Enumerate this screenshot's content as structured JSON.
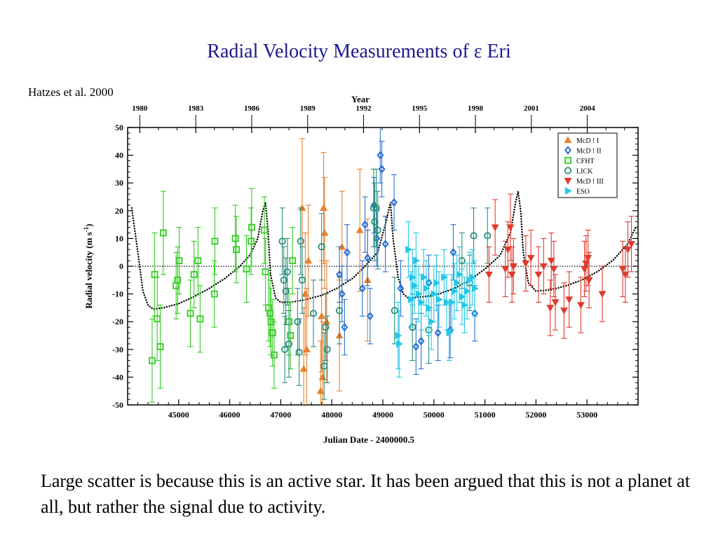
{
  "slide": {
    "title": "Radial Velocity Measurements of ε Eri",
    "citation": "Hatzes et al. 2000",
    "caption": "Large scatter is because this is an active star. It has been argued that this is not a planet at all, but rather the signal due to activity."
  },
  "chart_data": {
    "type": "scatter",
    "title": "",
    "xlabel": "Julian Date - 2400000.5",
    "ylabel": "Radial velocity (m s-1)",
    "top_axis_label": "Year",
    "xlim": [
      44000,
      54000
    ],
    "ylim": [
      -50,
      50
    ],
    "x_ticks": [
      45000,
      46000,
      47000,
      48000,
      49000,
      50000,
      51000,
      52000,
      53000
    ],
    "y_ticks": [
      -50,
      -40,
      -30,
      -20,
      -10,
      0,
      10,
      20,
      30,
      40,
      50
    ],
    "year_ticks": [
      {
        "year": "1980",
        "mjd": 44239
      },
      {
        "year": "1983",
        "mjd": 45335
      },
      {
        "year": "1986",
        "mjd": 46431
      },
      {
        "year": "1989",
        "mjd": 47527
      },
      {
        "year": "1992",
        "mjd": 48622
      },
      {
        "year": "1995",
        "mjd": 49718
      },
      {
        "year": "1998",
        "mjd": 50814
      },
      {
        "year": "2001",
        "mjd": 51910
      },
      {
        "year": "2004",
        "mjd": 53005
      }
    ],
    "zero_line": true,
    "legend_position": "top-right",
    "series": [
      {
        "name": "McD ! I",
        "marker": "triangle-up",
        "color": "#e8802e",
        "points": [
          {
            "x": 47420,
            "y": 21,
            "err": 25
          },
          {
            "x": 47450,
            "y": -37,
            "err": 22
          },
          {
            "x": 47480,
            "y": -10,
            "err": 22
          },
          {
            "x": 47510,
            "y": -30,
            "err": 22
          },
          {
            "x": 47540,
            "y": 2,
            "err": 20
          },
          {
            "x": 47780,
            "y": -45,
            "err": 18
          },
          {
            "x": 47800,
            "y": -18,
            "err": 20
          },
          {
            "x": 47820,
            "y": -40,
            "err": 20
          },
          {
            "x": 47840,
            "y": 21,
            "err": 20
          },
          {
            "x": 47860,
            "y": 12,
            "err": 20
          },
          {
            "x": 47900,
            "y": -20,
            "err": 22
          },
          {
            "x": 48150,
            "y": -25,
            "err": 20
          },
          {
            "x": 48200,
            "y": 7,
            "err": 20
          },
          {
            "x": 48550,
            "y": 13,
            "err": 22
          },
          {
            "x": 48700,
            "y": -5,
            "err": 22
          }
        ]
      },
      {
        "name": "McD ! II",
        "marker": "diamond",
        "color": "#2a6fd6",
        "points": [
          {
            "x": 48150,
            "y": -3,
            "err": 10
          },
          {
            "x": 48200,
            "y": -10,
            "err": 10
          },
          {
            "x": 48250,
            "y": -22,
            "err": 10
          },
          {
            "x": 48300,
            "y": 5,
            "err": 10
          },
          {
            "x": 48600,
            "y": -8,
            "err": 10
          },
          {
            "x": 48650,
            "y": 15,
            "err": 10
          },
          {
            "x": 48700,
            "y": 3,
            "err": 10
          },
          {
            "x": 48750,
            "y": -18,
            "err": 10
          },
          {
            "x": 48830,
            "y": 22,
            "err": 10
          },
          {
            "x": 48880,
            "y": 10,
            "err": 10
          },
          {
            "x": 48950,
            "y": 40,
            "err": 10
          },
          {
            "x": 48980,
            "y": 35,
            "err": 10
          },
          {
            "x": 49050,
            "y": 8,
            "err": 10
          },
          {
            "x": 49220,
            "y": 23,
            "err": 10
          },
          {
            "x": 49350,
            "y": -8,
            "err": 10
          },
          {
            "x": 49650,
            "y": -29,
            "err": 10
          },
          {
            "x": 49750,
            "y": -27,
            "err": 10
          },
          {
            "x": 49900,
            "y": -6,
            "err": 10
          },
          {
            "x": 50080,
            "y": -24,
            "err": 10
          },
          {
            "x": 50320,
            "y": -23,
            "err": 10
          },
          {
            "x": 50380,
            "y": 5,
            "err": 10
          },
          {
            "x": 50800,
            "y": -17,
            "err": 10
          }
        ]
      },
      {
        "name": "CFHT",
        "marker": "square",
        "color": "#33cc22",
        "points": [
          {
            "x": 44480,
            "y": -34,
            "err": 15
          },
          {
            "x": 44530,
            "y": -3,
            "err": 15
          },
          {
            "x": 44580,
            "y": -19,
            "err": 15
          },
          {
            "x": 44640,
            "y": -29,
            "err": 15
          },
          {
            "x": 44700,
            "y": 12,
            "err": 15
          },
          {
            "x": 44950,
            "y": -7,
            "err": 12
          },
          {
            "x": 44980,
            "y": -5,
            "err": 12
          },
          {
            "x": 45010,
            "y": 2,
            "err": 12
          },
          {
            "x": 45230,
            "y": -17,
            "err": 12
          },
          {
            "x": 45300,
            "y": -3,
            "err": 12
          },
          {
            "x": 45380,
            "y": 2,
            "err": 12
          },
          {
            "x": 45420,
            "y": -19,
            "err": 12
          },
          {
            "x": 45700,
            "y": -10,
            "err": 12
          },
          {
            "x": 45710,
            "y": 9,
            "err": 12
          },
          {
            "x": 46110,
            "y": 10,
            "err": 12
          },
          {
            "x": 46130,
            "y": 6,
            "err": 12
          },
          {
            "x": 46330,
            "y": -1,
            "err": 12
          },
          {
            "x": 46420,
            "y": 9,
            "err": 12
          },
          {
            "x": 46430,
            "y": 14,
            "err": 14
          },
          {
            "x": 46680,
            "y": 13,
            "err": 12
          },
          {
            "x": 46700,
            "y": -2,
            "err": 12
          },
          {
            "x": 46760,
            "y": -15,
            "err": 12
          },
          {
            "x": 46790,
            "y": -17,
            "err": 12
          },
          {
            "x": 46810,
            "y": -20,
            "err": 12
          },
          {
            "x": 46840,
            "y": -24,
            "err": 12
          },
          {
            "x": 46870,
            "y": -32,
            "err": 12
          },
          {
            "x": 47160,
            "y": -20,
            "err": 12
          },
          {
            "x": 47190,
            "y": -25,
            "err": 12
          },
          {
            "x": 47230,
            "y": 2,
            "err": 12
          }
        ]
      },
      {
        "name": "LICK",
        "marker": "circle",
        "color": "#2a8f7a",
        "points": [
          {
            "x": 47030,
            "y": 9,
            "err": 12
          },
          {
            "x": 47060,
            "y": -5,
            "err": 12
          },
          {
            "x": 47080,
            "y": -30,
            "err": 12
          },
          {
            "x": 47100,
            "y": -9,
            "err": 12
          },
          {
            "x": 47130,
            "y": -2,
            "err": 12
          },
          {
            "x": 47160,
            "y": -28,
            "err": 12
          },
          {
            "x": 47330,
            "y": -20,
            "err": 12
          },
          {
            "x": 47360,
            "y": -31,
            "err": 12
          },
          {
            "x": 47390,
            "y": 9,
            "err": 12
          },
          {
            "x": 47420,
            "y": -5,
            "err": 12
          },
          {
            "x": 47640,
            "y": -17,
            "err": 12
          },
          {
            "x": 47800,
            "y": 7,
            "err": 12
          },
          {
            "x": 47850,
            "y": -36,
            "err": 12
          },
          {
            "x": 47880,
            "y": -22,
            "err": 12
          },
          {
            "x": 47910,
            "y": -30,
            "err": 12
          },
          {
            "x": 48150,
            "y": -16,
            "err": 12
          },
          {
            "x": 48820,
            "y": 21,
            "err": 14
          },
          {
            "x": 48840,
            "y": 16,
            "err": 14
          },
          {
            "x": 48870,
            "y": 21,
            "err": 14
          },
          {
            "x": 48900,
            "y": 13,
            "err": 14
          },
          {
            "x": 49230,
            "y": -16,
            "err": 12
          },
          {
            "x": 49580,
            "y": -22,
            "err": 12
          },
          {
            "x": 49900,
            "y": -23,
            "err": 12
          },
          {
            "x": 50550,
            "y": 2,
            "err": 10
          },
          {
            "x": 50700,
            "y": -6,
            "err": 10
          },
          {
            "x": 50780,
            "y": 11,
            "err": 10
          },
          {
            "x": 51050,
            "y": 11,
            "err": 10
          }
        ]
      },
      {
        "name": "McD ! III",
        "marker": "triangle-down",
        "color": "#e03a2e",
        "points": [
          {
            "x": 51080,
            "y": -3,
            "err": 10
          },
          {
            "x": 51200,
            "y": 14,
            "err": 10
          },
          {
            "x": 51400,
            "y": -1,
            "err": 10
          },
          {
            "x": 51450,
            "y": 6,
            "err": 10
          },
          {
            "x": 51500,
            "y": 14,
            "err": 12
          },
          {
            "x": 51530,
            "y": -3,
            "err": 10
          },
          {
            "x": 51560,
            "y": 0,
            "err": 10
          },
          {
            "x": 51800,
            "y": 1,
            "err": 10
          },
          {
            "x": 51900,
            "y": 3,
            "err": 10
          },
          {
            "x": 52050,
            "y": -3,
            "err": 10
          },
          {
            "x": 52150,
            "y": 0,
            "err": 10
          },
          {
            "x": 52280,
            "y": -15,
            "err": 10
          },
          {
            "x": 52300,
            "y": 2,
            "err": 10
          },
          {
            "x": 52350,
            "y": -1,
            "err": 10
          },
          {
            "x": 52380,
            "y": -13,
            "err": 10
          },
          {
            "x": 52550,
            "y": -16,
            "err": 10
          },
          {
            "x": 52650,
            "y": -12,
            "err": 10
          },
          {
            "x": 52880,
            "y": -14,
            "err": 10
          },
          {
            "x": 52950,
            "y": -1,
            "err": 10
          },
          {
            "x": 52980,
            "y": 1,
            "err": 10
          },
          {
            "x": 53020,
            "y": 3,
            "err": 10
          },
          {
            "x": 53040,
            "y": -5,
            "err": 10
          },
          {
            "x": 53300,
            "y": -10,
            "err": 10
          },
          {
            "x": 53700,
            "y": -1,
            "err": 10
          },
          {
            "x": 53750,
            "y": -3,
            "err": 10
          },
          {
            "x": 53800,
            "y": 6,
            "err": 10
          },
          {
            "x": 53870,
            "y": 8,
            "err": 10
          }
        ]
      },
      {
        "name": "ESO",
        "marker": "triangle-right",
        "color": "#22c8e8",
        "points": [
          {
            "x": 49300,
            "y": -25,
            "err": 12
          },
          {
            "x": 49320,
            "y": -28,
            "err": 12
          },
          {
            "x": 49500,
            "y": 6,
            "err": 10
          },
          {
            "x": 49550,
            "y": -12,
            "err": 10
          },
          {
            "x": 49580,
            "y": -4,
            "err": 10
          },
          {
            "x": 49620,
            "y": -7,
            "err": 10
          },
          {
            "x": 49650,
            "y": 2,
            "err": 10
          },
          {
            "x": 49700,
            "y": -10,
            "err": 10
          },
          {
            "x": 49750,
            "y": -13,
            "err": 10
          },
          {
            "x": 49800,
            "y": -4,
            "err": 10
          },
          {
            "x": 49850,
            "y": -8,
            "err": 10
          },
          {
            "x": 49900,
            "y": -15,
            "err": 10
          },
          {
            "x": 49950,
            "y": -20,
            "err": 10
          },
          {
            "x": 50000,
            "y": -10,
            "err": 10
          },
          {
            "x": 50050,
            "y": -6,
            "err": 10
          },
          {
            "x": 50100,
            "y": -12,
            "err": 10
          },
          {
            "x": 50200,
            "y": -4,
            "err": 10
          },
          {
            "x": 50250,
            "y": -13,
            "err": 10
          },
          {
            "x": 50300,
            "y": -24,
            "err": 10
          },
          {
            "x": 50350,
            "y": -13,
            "err": 10
          },
          {
            "x": 50400,
            "y": -9,
            "err": 10
          },
          {
            "x": 50450,
            "y": -6,
            "err": 10
          },
          {
            "x": 50500,
            "y": -3,
            "err": 10
          },
          {
            "x": 50550,
            "y": -11,
            "err": 10
          },
          {
            "x": 50600,
            "y": -14,
            "err": 10
          },
          {
            "x": 50650,
            "y": -9,
            "err": 10
          },
          {
            "x": 50700,
            "y": -5,
            "err": 10
          },
          {
            "x": 50750,
            "y": -4,
            "err": 10
          },
          {
            "x": 50800,
            "y": -8,
            "err": 10
          }
        ]
      }
    ],
    "orbit_curve": {
      "style": "dotted",
      "color": "#000000",
      "x": [
        44080,
        44200,
        44300,
        44400,
        44500,
        44700,
        45000,
        45300,
        45600,
        45900,
        46200,
        46400,
        46550,
        46650,
        46700,
        46750,
        46800,
        46900,
        47000,
        47200,
        47500,
        47800,
        48100,
        48400,
        48600,
        48900,
        49050,
        49150,
        49200,
        49300,
        49400,
        49500,
        49800,
        50100,
        50400,
        50700,
        51000,
        51300,
        51500,
        51600,
        51650,
        51700,
        51750,
        51850,
        52000,
        52300,
        52600,
        52900,
        53200,
        53500,
        53800,
        53950
      ],
      "y": [
        21,
        5,
        -9,
        -14,
        -15.5,
        -15,
        -13.5,
        -11,
        -8,
        -4.5,
        0,
        4,
        10,
        20,
        23,
        13,
        -3,
        -11.5,
        -13,
        -13,
        -12,
        -10.5,
        -8,
        -4.5,
        -1,
        5,
        15,
        23,
        10,
        -4,
        -10,
        -11.5,
        -11,
        -10,
        -8,
        -5,
        -1,
        4,
        12,
        23,
        27,
        20,
        5,
        -6,
        -9,
        -8.5,
        -7,
        -5,
        -2,
        2,
        8,
        14
      ]
    }
  }
}
